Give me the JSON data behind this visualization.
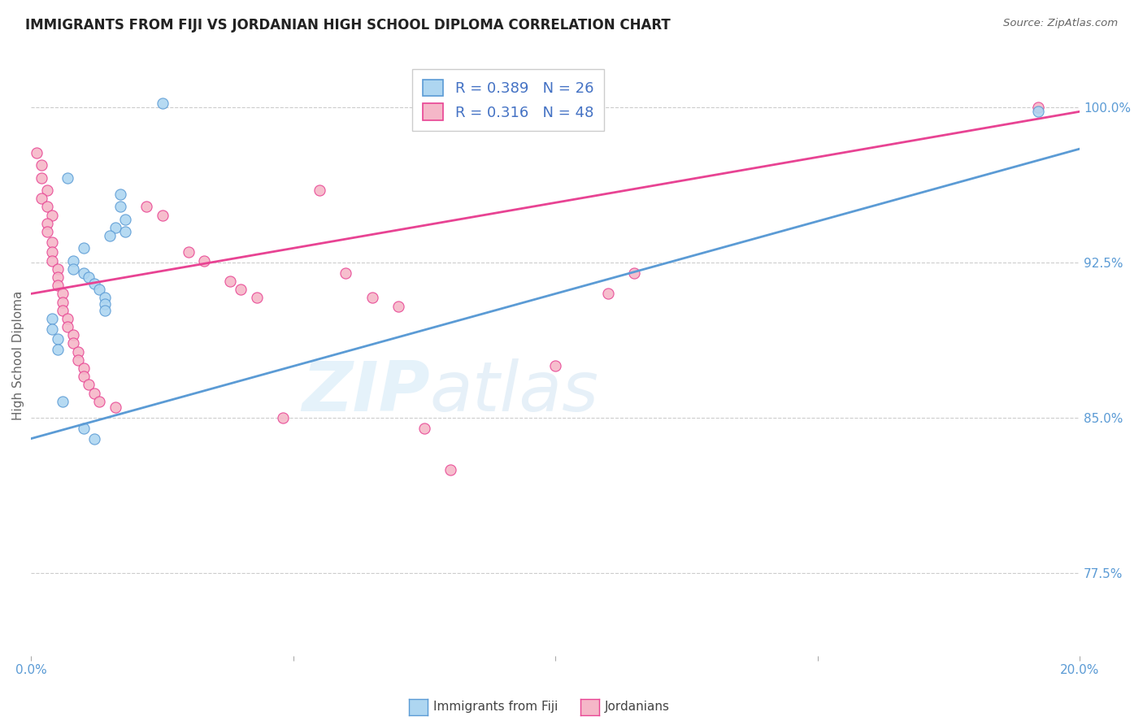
{
  "title": "IMMIGRANTS FROM FIJI VS JORDANIAN HIGH SCHOOL DIPLOMA CORRELATION CHART",
  "source": "Source: ZipAtlas.com",
  "ylabel": "High School Diploma",
  "ylabel_right_ticks": [
    "77.5%",
    "85.0%",
    "92.5%",
    "100.0%"
  ],
  "ylabel_right_vals": [
    0.775,
    0.85,
    0.925,
    1.0
  ],
  "xlim": [
    0.0,
    0.2
  ],
  "ylim": [
    0.735,
    1.025
  ],
  "legend_fiji_R": "0.389",
  "legend_fiji_N": "26",
  "legend_jordan_R": "0.316",
  "legend_jordan_N": "48",
  "fiji_color": "#aed6f1",
  "jordan_color": "#f5b7c8",
  "fiji_edge_color": "#5b9bd5",
  "jordan_edge_color": "#e84393",
  "fiji_line_color": "#5b9bd5",
  "jordan_line_color": "#e84393",
  "watermark_zip": "ZIP",
  "watermark_atlas": "atlas",
  "grid_color": "#cccccc",
  "background_color": "#ffffff",
  "fiji_line": [
    [
      0.0,
      0.84
    ],
    [
      0.2,
      0.98
    ]
  ],
  "jordan_line": [
    [
      0.0,
      0.91
    ],
    [
      0.2,
      0.998
    ]
  ],
  "fiji_points": [
    [
      0.025,
      1.002
    ],
    [
      0.007,
      0.966
    ],
    [
      0.017,
      0.958
    ],
    [
      0.017,
      0.952
    ],
    [
      0.018,
      0.946
    ],
    [
      0.016,
      0.942
    ],
    [
      0.018,
      0.94
    ],
    [
      0.015,
      0.938
    ],
    [
      0.01,
      0.932
    ],
    [
      0.008,
      0.926
    ],
    [
      0.008,
      0.922
    ],
    [
      0.01,
      0.92
    ],
    [
      0.011,
      0.918
    ],
    [
      0.012,
      0.915
    ],
    [
      0.013,
      0.912
    ],
    [
      0.014,
      0.908
    ],
    [
      0.014,
      0.905
    ],
    [
      0.014,
      0.902
    ],
    [
      0.004,
      0.898
    ],
    [
      0.004,
      0.893
    ],
    [
      0.005,
      0.888
    ],
    [
      0.005,
      0.883
    ],
    [
      0.006,
      0.858
    ],
    [
      0.01,
      0.845
    ],
    [
      0.012,
      0.84
    ],
    [
      0.192,
      0.998
    ]
  ],
  "jordan_points": [
    [
      0.001,
      0.978
    ],
    [
      0.002,
      0.972
    ],
    [
      0.002,
      0.966
    ],
    [
      0.003,
      0.96
    ],
    [
      0.002,
      0.956
    ],
    [
      0.003,
      0.952
    ],
    [
      0.004,
      0.948
    ],
    [
      0.003,
      0.944
    ],
    [
      0.003,
      0.94
    ],
    [
      0.004,
      0.935
    ],
    [
      0.004,
      0.93
    ],
    [
      0.004,
      0.926
    ],
    [
      0.005,
      0.922
    ],
    [
      0.005,
      0.918
    ],
    [
      0.005,
      0.914
    ],
    [
      0.006,
      0.91
    ],
    [
      0.006,
      0.906
    ],
    [
      0.006,
      0.902
    ],
    [
      0.007,
      0.898
    ],
    [
      0.007,
      0.894
    ],
    [
      0.008,
      0.89
    ],
    [
      0.008,
      0.886
    ],
    [
      0.009,
      0.882
    ],
    [
      0.009,
      0.878
    ],
    [
      0.01,
      0.874
    ],
    [
      0.01,
      0.87
    ],
    [
      0.011,
      0.866
    ],
    [
      0.012,
      0.862
    ],
    [
      0.013,
      0.858
    ],
    [
      0.016,
      0.855
    ],
    [
      0.022,
      0.952
    ],
    [
      0.025,
      0.948
    ],
    [
      0.03,
      0.93
    ],
    [
      0.033,
      0.926
    ],
    [
      0.038,
      0.916
    ],
    [
      0.04,
      0.912
    ],
    [
      0.043,
      0.908
    ],
    [
      0.048,
      0.85
    ],
    [
      0.055,
      0.96
    ],
    [
      0.06,
      0.92
    ],
    [
      0.065,
      0.908
    ],
    [
      0.07,
      0.904
    ],
    [
      0.075,
      0.845
    ],
    [
      0.08,
      0.825
    ],
    [
      0.1,
      0.875
    ],
    [
      0.11,
      0.91
    ],
    [
      0.115,
      0.92
    ],
    [
      0.192,
      1.0
    ]
  ]
}
